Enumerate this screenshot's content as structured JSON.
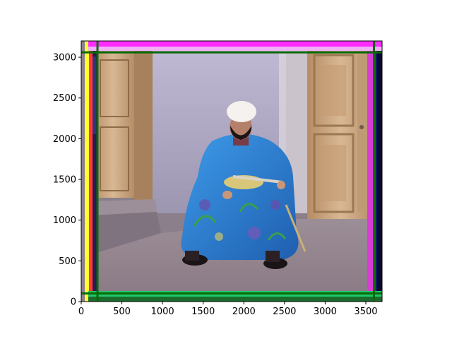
{
  "figure": {
    "kind": "matplotlib imshow of a color-aligned photograph",
    "subject": "seated man in turban and blue floral robe with sword, wooden carved doors behind",
    "x_axis": {
      "ticks": [
        0,
        500,
        1000,
        1500,
        2000,
        2500,
        3000,
        3500
      ],
      "range": [
        0,
        3700
      ]
    },
    "y_axis": {
      "ticks": [
        0,
        500,
        1000,
        1500,
        2000,
        2500,
        3000
      ],
      "range": [
        0,
        3200
      ]
    },
    "guide_lines": {
      "color": "#0a6a0a",
      "vertical_x": [
        200,
        3600
      ],
      "horizontal_y": [
        100,
        3060
      ]
    },
    "colors": {
      "robe": "#2f7fd0",
      "wall": "#b6b0c8",
      "door": "#c9a27a",
      "floor": "#a78f93",
      "magenta_fringe": "#ff2cff",
      "green_fringe": "#22c233"
    }
  }
}
